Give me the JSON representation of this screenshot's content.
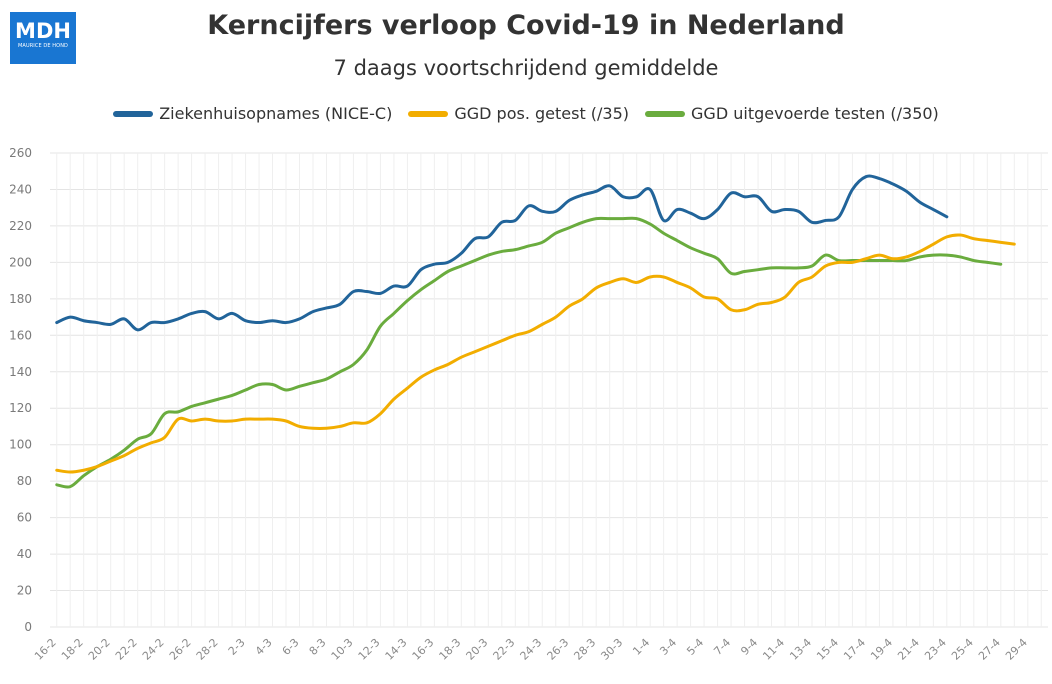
{
  "logo": {
    "text": "MDH",
    "subtext": "MAURICE DE HOND"
  },
  "chart_data": {
    "type": "line",
    "title": "Kerncijfers verloop Covid-19 in Nederland",
    "subtitle": "7 daags voortschrijdend gemiddelde",
    "legend_position": "top",
    "grid": true,
    "ylim": [
      0,
      260
    ],
    "yticks": [
      0,
      20,
      40,
      60,
      80,
      100,
      120,
      140,
      160,
      180,
      200,
      220,
      240,
      260
    ],
    "x_start": "16-2",
    "x_end": "30-4",
    "xtick_labels": [
      "16-2",
      "18-2",
      "20-2",
      "22-2",
      "24-2",
      "26-2",
      "28-2",
      "2-3",
      "4-3",
      "6-3",
      "8-3",
      "10-3",
      "12-3",
      "14-3",
      "16-3",
      "18-3",
      "20-3",
      "22-3",
      "24-3",
      "26-3",
      "28-3",
      "30-3",
      "1-4",
      "3-4",
      "5-4",
      "7-4",
      "9-4",
      "11-4",
      "13-4",
      "15-4",
      "17-4",
      "19-4",
      "21-4",
      "23-4",
      "25-4",
      "27-4",
      "29-4"
    ],
    "series": [
      {
        "name": "Ziekenhuisopnames (NICE-C)",
        "color": "#21649a",
        "values": [
          167,
          170,
          168,
          167,
          166,
          169,
          163,
          167,
          167,
          169,
          172,
          173,
          169,
          172,
          168,
          167,
          168,
          167,
          169,
          173,
          175,
          177,
          184,
          184,
          183,
          187,
          187,
          196,
          199,
          200,
          205,
          213,
          214,
          222,
          223,
          231,
          228,
          228,
          234,
          237,
          239,
          242,
          236,
          236,
          240,
          223,
          229,
          227,
          224,
          229,
          238,
          236,
          236,
          228,
          229,
          228,
          222,
          223,
          225,
          240,
          247,
          246,
          243,
          239,
          233,
          229,
          225
        ],
        "end": "25-4"
      },
      {
        "name": "GGD pos. getest (/35)",
        "color": "#f2ad00",
        "values": [
          86,
          85,
          86,
          88,
          91,
          94,
          98,
          101,
          104,
          114,
          113,
          114,
          113,
          113,
          114,
          114,
          114,
          113,
          110,
          109,
          109,
          110,
          112,
          112,
          117,
          125,
          131,
          137,
          141,
          144,
          148,
          151,
          154,
          157,
          160,
          162,
          166,
          170,
          176,
          180,
          186,
          189,
          191,
          189,
          192,
          192,
          189,
          186,
          181,
          180,
          174,
          174,
          177,
          178,
          181,
          189,
          192,
          198,
          200,
          200,
          202,
          204,
          202,
          203,
          206,
          210,
          214,
          215,
          213,
          212,
          211,
          210
        ],
        "end": "30-4"
      },
      {
        "name": "GGD uitgevoerde testen (/350)",
        "color": "#6aac3e",
        "values": [
          78,
          77,
          83,
          88,
          92,
          97,
          103,
          106,
          117,
          118,
          121,
          123,
          125,
          127,
          130,
          133,
          133,
          130,
          132,
          134,
          136,
          140,
          144,
          152,
          165,
          172,
          179,
          185,
          190,
          195,
          198,
          201,
          204,
          206,
          207,
          209,
          211,
          216,
          219,
          222,
          224,
          224,
          224,
          224,
          221,
          216,
          212,
          208,
          205,
          202,
          194,
          195,
          196,
          197,
          197,
          197,
          198,
          204,
          201,
          201,
          201,
          201,
          201,
          201,
          203,
          204,
          204,
          203,
          201,
          200,
          199
        ],
        "end": "29-4"
      }
    ]
  }
}
